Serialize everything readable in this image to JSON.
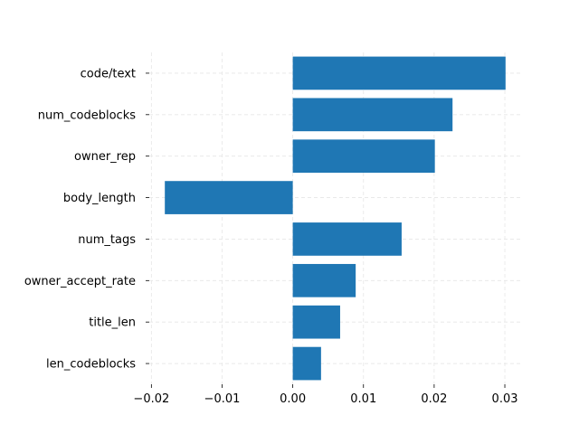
{
  "chart_data": {
    "type": "bar",
    "orientation": "horizontal",
    "title": "",
    "xlabel": "",
    "ylabel": "",
    "categories": [
      "code/text",
      "num_codeblocks",
      "owner_rep",
      "body_length",
      "num_tags",
      "owner_accept_rate",
      "title_len",
      "len_codeblocks"
    ],
    "values": [
      0.0301,
      0.0226,
      0.0201,
      -0.0181,
      0.0154,
      0.0089,
      0.0067,
      0.004
    ],
    "xlim": [
      -0.0203,
      0.0323
    ],
    "x_ticks": [
      -0.02,
      -0.01,
      0.0,
      0.01,
      0.02,
      0.03
    ],
    "x_tick_labels": [
      "−0.02",
      "−0.01",
      "0.00",
      "0.01",
      "0.02",
      "0.03"
    ],
    "grid": true,
    "bar_color": "#1f77b4",
    "grid_color": "#e6e6e6"
  }
}
